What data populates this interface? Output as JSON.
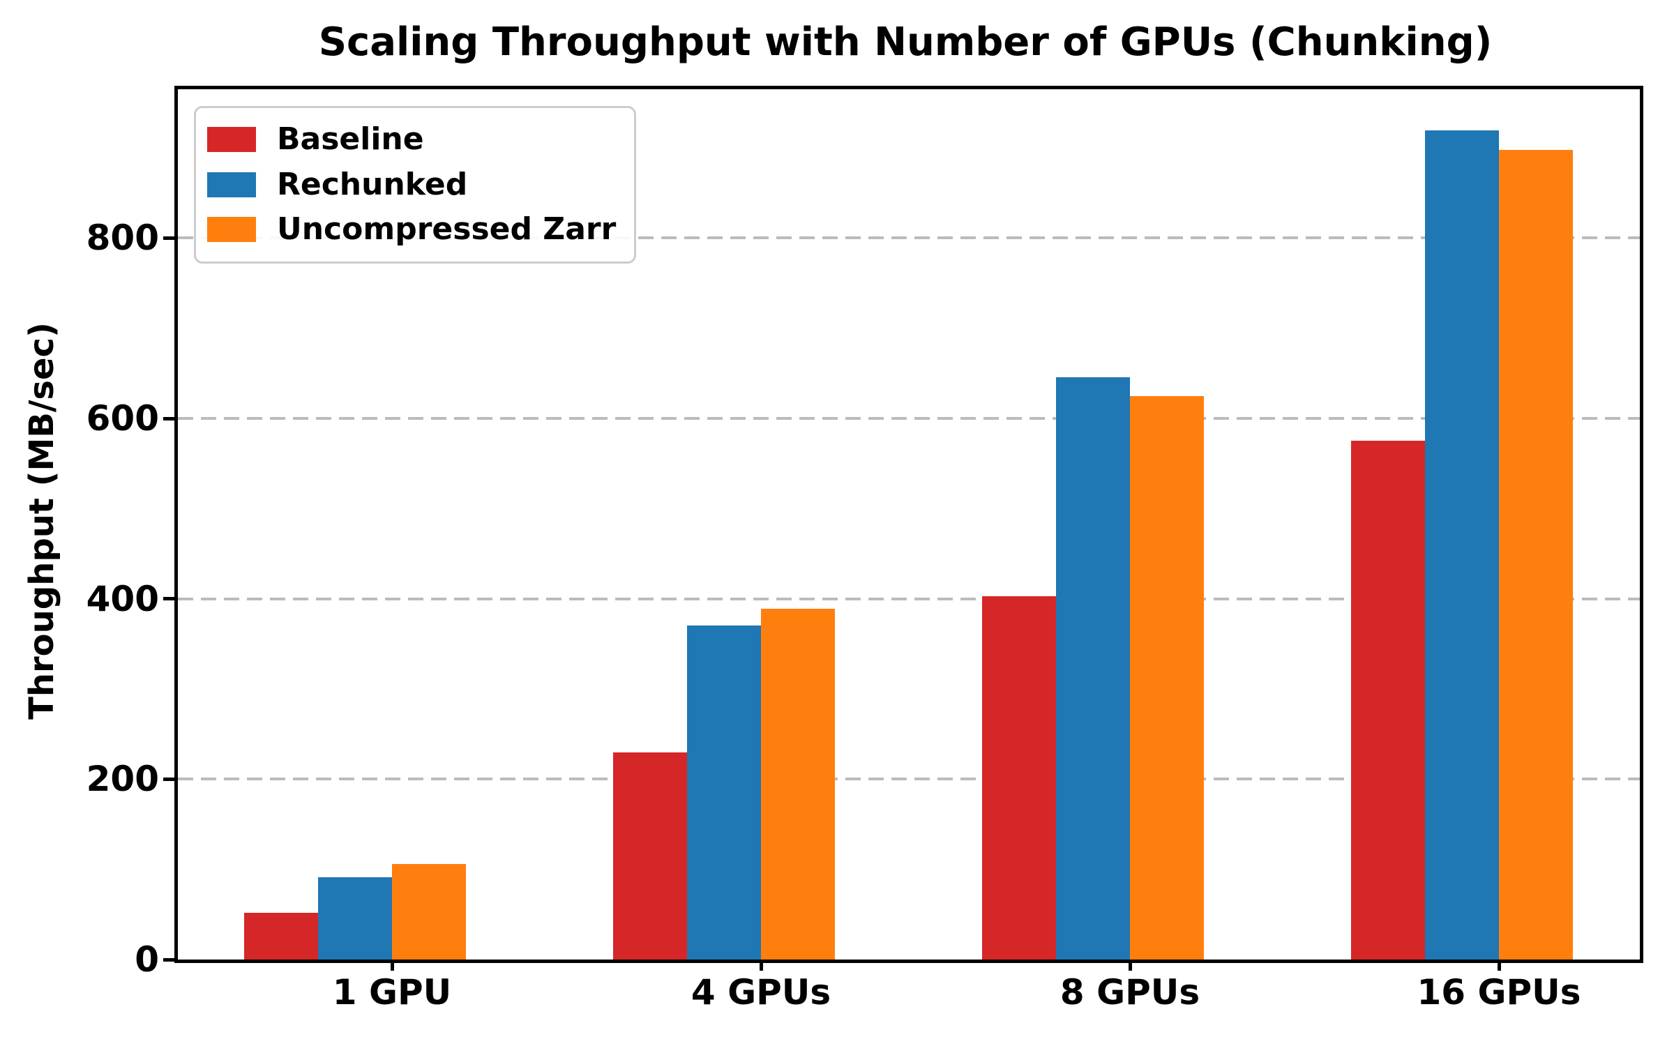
{
  "title": "Scaling Throughput with Number of GPUs (Chunking)",
  "axes": {
    "ylabel": "Throughput (MB/sec)",
    "yticks": [
      "0",
      "200",
      "400",
      "600",
      "800"
    ],
    "ytick_values": [
      0,
      200,
      400,
      600,
      800
    ]
  },
  "legend": {
    "items": [
      {
        "label": "Baseline",
        "color": "#d62728"
      },
      {
        "label": "Rechunked",
        "color": "#1f77b4"
      },
      {
        "label": "Uncompressed Zarr",
        "color": "#ff7f0e"
      }
    ]
  },
  "chart_data": {
    "type": "bar",
    "title": "Scaling Throughput with Number of GPUs (Chunking)",
    "xlabel": "",
    "ylabel": "Throughput (MB/sec)",
    "categories": [
      "1 GPU",
      "4 GPUs",
      "8 GPUs",
      "16 GPUs"
    ],
    "series": [
      {
        "name": "Baseline",
        "color": "#d62728",
        "values": [
          52,
          230,
          403,
          575
        ]
      },
      {
        "name": "Rechunked",
        "color": "#1f77b4",
        "values": [
          91,
          370,
          646,
          919
        ]
      },
      {
        "name": "Uncompressed Zarr",
        "color": "#ff7f0e",
        "values": [
          106,
          389,
          625,
          898
        ]
      }
    ],
    "ylim": [
      0,
      965
    ],
    "yticks": [
      0,
      200,
      400,
      600,
      800
    ],
    "grid": "horizontal-dashed",
    "gridline_color": "#bbbbbb",
    "legend_position": "upper-left"
  }
}
